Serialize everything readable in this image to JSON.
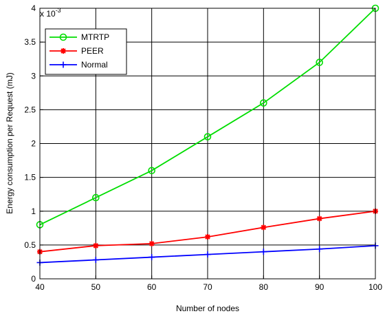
{
  "chart_data": {
    "type": "line",
    "xlabel": "Number of nodes",
    "ylabel": "Energy consumption per Request (mJ)",
    "y_exponent_base": "x 10",
    "y_exponent_power": "-3",
    "x": [
      40,
      50,
      60,
      70,
      80,
      90,
      100
    ],
    "xlim": [
      40,
      100
    ],
    "ylim": [
      0,
      4
    ],
    "xticks": [
      "40",
      "50",
      "60",
      "70",
      "80",
      "90",
      "100"
    ],
    "yticks": [
      "0",
      "0.5",
      "1",
      "1.5",
      "2",
      "2.5",
      "3",
      "3.5",
      "4"
    ],
    "ytick_values": [
      0,
      0.5,
      1,
      1.5,
      2,
      2.5,
      3,
      3.5,
      4
    ],
    "grid": true,
    "legend_position": "top-left",
    "series": [
      {
        "name": "MTRTP",
        "color": "#00dd00",
        "marker": "circle",
        "values": [
          0.8,
          1.2,
          1.6,
          2.1,
          2.6,
          3.2,
          4.0
        ]
      },
      {
        "name": "PEER",
        "color": "#ff0000",
        "marker": "star",
        "values": [
          0.4,
          0.49,
          0.52,
          0.62,
          0.76,
          0.89,
          1.0
        ]
      },
      {
        "name": "Normal",
        "color": "#0000ff",
        "marker": "plus",
        "values": [
          0.24,
          0.28,
          0.32,
          0.36,
          0.4,
          0.44,
          0.49
        ]
      }
    ]
  }
}
